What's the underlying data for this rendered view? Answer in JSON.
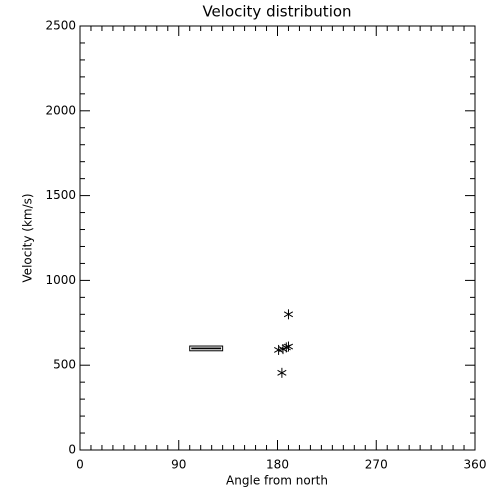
{
  "chart_data": {
    "type": "scatter",
    "title": "Velocity distribution",
    "x_label": "Angle from north",
    "y_label": "Velocity (km/s)",
    "x": [
      181,
      185,
      188,
      190,
      184,
      190
    ],
    "values": [
      590,
      595,
      605,
      610,
      455,
      800
    ],
    "color": "#000000",
    "range_box": {
      "angle": [
        100,
        130
      ],
      "velocity": [
        585,
        613
      ]
    },
    "xlim": [
      0,
      360
    ],
    "xticks": [
      0,
      90,
      180,
      270,
      360
    ],
    "ylim": [
      0,
      2500
    ],
    "yticks": [
      0,
      500,
      1000,
      1500,
      2000,
      2500
    ],
    "grid": false
  }
}
